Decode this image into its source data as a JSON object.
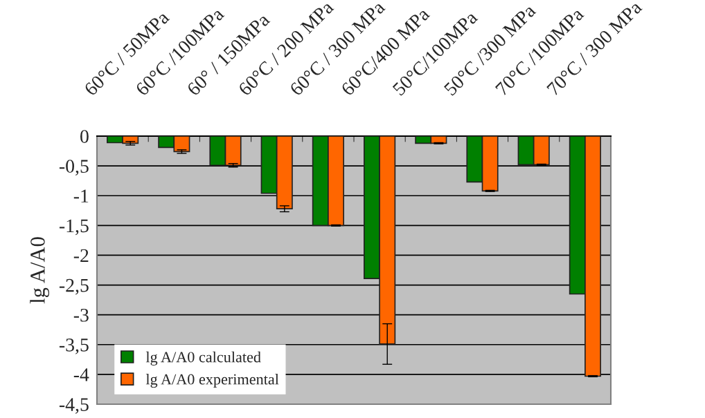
{
  "chart_data": {
    "type": "bar",
    "ylabel": "lg A/A0",
    "categories": [
      "60°C / 50MPa",
      "60°C /100MPa",
      "60° / 150MPa",
      "60°C / 200 MPa",
      "60°C / 300 MPa",
      "60°C/400 MPa",
      "50°C/100MPa",
      "50°C /300 MPa",
      "70°C /100MPa",
      "70°C / 300 MPa"
    ],
    "series": [
      {
        "name": "lg A/A0 calculated",
        "color": "#008000",
        "values": [
          -0.11,
          -0.19,
          -0.49,
          -0.96,
          -1.5,
          -2.39,
          -0.12,
          -0.77,
          -0.48,
          -2.65
        ]
      },
      {
        "name": "lg A/A0 experimental",
        "color": "#ff6600",
        "values": [
          -0.12,
          -0.26,
          -0.49,
          -1.22,
          -1.5,
          -3.49,
          -0.12,
          -0.92,
          -0.48,
          -4.03
        ],
        "errors": [
          0.03,
          0.03,
          0.03,
          0.05,
          0.01,
          0.34,
          0.01,
          0.01,
          0.01,
          0.01
        ]
      }
    ],
    "ylim": [
      -4.5,
      0
    ],
    "yticks": [
      0,
      {
        "value": -0.5,
        "label": "-0,5"
      },
      {
        "value": -1,
        "label": "-1"
      },
      {
        "value": -1.5,
        "label": "-1,5"
      },
      {
        "value": -2,
        "label": "-2"
      },
      {
        "value": -2.5,
        "label": "-2,5"
      },
      {
        "value": -3,
        "label": "-3"
      },
      {
        "value": -3.5,
        "label": "-3,5"
      },
      {
        "value": -4,
        "label": "-4"
      },
      {
        "value": -4.5,
        "label": "-4,5"
      }
    ],
    "grid": "y",
    "legend": "bottom left"
  }
}
